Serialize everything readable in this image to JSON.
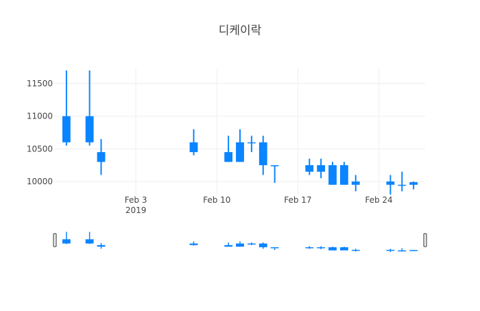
{
  "chart_data": {
    "type": "candlestick",
    "title": "디케이락",
    "x_axis": {
      "ticks": [
        {
          "date": "2019-02-03",
          "label": "Feb 3",
          "sublabel": "2019"
        },
        {
          "date": "2019-02-10",
          "label": "Feb 10",
          "sublabel": ""
        },
        {
          "date": "2019-02-17",
          "label": "Feb 17",
          "sublabel": ""
        },
        {
          "date": "2019-02-24",
          "label": "Feb 24",
          "sublabel": ""
        }
      ],
      "range": [
        "2019-01-27",
        "2019-02-28"
      ]
    },
    "y_axis": {
      "ticks": [
        10000,
        10500,
        11000,
        11500
      ],
      "range": [
        9790,
        11730
      ]
    },
    "grid": true,
    "rangeslider": true,
    "colors": {
      "increasing": "#3D9970",
      "decreasing": "#FF4136"
    },
    "candles": [
      {
        "date": "2019-01-28",
        "open": 10600,
        "high": 11700,
        "low": 10550,
        "close": 11000
      },
      {
        "date": "2019-01-30",
        "open": 10600,
        "high": 11700,
        "low": 10550,
        "close": 11000
      },
      {
        "date": "2019-01-31",
        "open": 10300,
        "high": 10650,
        "low": 10100,
        "close": 10450
      },
      {
        "date": "2019-02-08",
        "open": 10450,
        "high": 10800,
        "low": 10400,
        "close": 10600
      },
      {
        "date": "2019-02-11",
        "open": 10300,
        "high": 10700,
        "low": 10300,
        "close": 10450
      },
      {
        "date": "2019-02-12",
        "open": 10300,
        "high": 10800,
        "low": 10300,
        "close": 10600
      },
      {
        "date": "2019-02-13",
        "open": 10600,
        "high": 10700,
        "low": 10450,
        "close": 10600
      },
      {
        "date": "2019-02-14",
        "open": 10250,
        "high": 10700,
        "low": 10100,
        "close": 10600
      },
      {
        "date": "2019-02-15",
        "open": 10250,
        "high": 10250,
        "low": 9980,
        "close": 10250
      },
      {
        "date": "2019-02-18",
        "open": 10150,
        "high": 10350,
        "low": 10100,
        "close": 10250
      },
      {
        "date": "2019-02-19",
        "open": 10150,
        "high": 10350,
        "low": 10050,
        "close": 10250
      },
      {
        "date": "2019-02-20",
        "open": 9950,
        "high": 10300,
        "low": 9950,
        "close": 10250
      },
      {
        "date": "2019-02-21",
        "open": 9950,
        "high": 10300,
        "low": 9950,
        "close": 10250
      },
      {
        "date": "2019-02-22",
        "open": 9950,
        "high": 10100,
        "low": 9850,
        "close": 10000
      },
      {
        "date": "2019-02-25",
        "open": 9950,
        "high": 10100,
        "low": 9800,
        "close": 10000
      },
      {
        "date": "2019-02-26",
        "open": 9950,
        "high": 10150,
        "low": 9850,
        "close": 9950
      },
      {
        "date": "2019-02-27",
        "open": 9950,
        "high": 10000,
        "low": 9880,
        "close": 9990
      }
    ]
  }
}
